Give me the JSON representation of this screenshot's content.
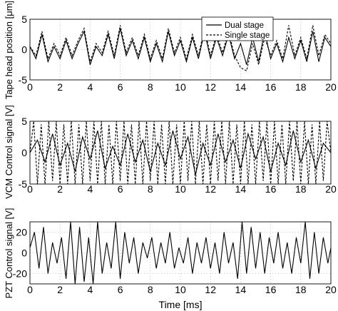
{
  "chart_data": [
    {
      "type": "line",
      "ylabel": "Tape head position [μm]",
      "xlabel": "",
      "xlim": [
        0,
        20
      ],
      "ylim": [
        -5,
        5
      ],
      "xticks": [
        "0",
        "2",
        "4",
        "6",
        "8",
        "10",
        "12",
        "14",
        "16",
        "18",
        "20"
      ],
      "yticks": [
        "-5",
        "0",
        "5"
      ],
      "grid": true,
      "legend_position": "top-right",
      "series": [
        {
          "name": "Dual stage",
          "style": "solid",
          "color": "#000000",
          "x": [
            0,
            0.4,
            0.8,
            1.2,
            1.6,
            2.0,
            2.4,
            2.8,
            3.2,
            3.6,
            4.0,
            4.4,
            4.8,
            5.2,
            5.6,
            6.0,
            6.4,
            6.8,
            7.2,
            7.6,
            8.0,
            8.4,
            8.8,
            9.2,
            9.6,
            10.0,
            10.4,
            10.8,
            11.2,
            11.6,
            12.0,
            12.4,
            12.8,
            13.2,
            13.6,
            14.0,
            14.4,
            14.8,
            15.2,
            15.6,
            16.0,
            16.4,
            16.8,
            17.2,
            17.6,
            18.0,
            18.4,
            18.8,
            19.2,
            19.6,
            20.0
          ],
          "y": [
            0.5,
            -1.5,
            2.5,
            -2.0,
            0.5,
            -1.5,
            1.5,
            -1.5,
            1.0,
            3.0,
            -2.5,
            0.5,
            -1.0,
            2.5,
            -1.5,
            3.5,
            -1.0,
            1.5,
            -1.5,
            2.0,
            -2.0,
            1.0,
            -2.0,
            3.0,
            -1.0,
            1.5,
            -2.0,
            2.0,
            -1.5,
            3.0,
            -1.5,
            2.0,
            -1.0,
            2.5,
            -1.5,
            1.0,
            -2.5,
            2.0,
            -2.0,
            3.0,
            -1.5,
            1.0,
            -2.0,
            2.0,
            -1.5,
            1.5,
            -2.0,
            3.0,
            -2.0,
            2.0,
            0.5
          ]
        },
        {
          "name": "Single stage",
          "style": "dashed",
          "color": "#000000",
          "x": [
            0,
            0.4,
            0.8,
            1.2,
            1.6,
            2.0,
            2.4,
            2.8,
            3.2,
            3.6,
            4.0,
            4.4,
            4.8,
            5.2,
            5.6,
            6.0,
            6.4,
            6.8,
            7.2,
            7.6,
            8.0,
            8.4,
            8.8,
            9.2,
            9.6,
            10.0,
            10.4,
            10.8,
            11.2,
            11.6,
            12.0,
            12.4,
            12.8,
            13.2,
            13.6,
            14.0,
            14.4,
            14.8,
            15.2,
            15.6,
            16.0,
            16.4,
            16.8,
            17.2,
            17.6,
            18.0,
            18.4,
            18.8,
            19.2,
            19.6,
            20.0
          ],
          "y": [
            0.5,
            -1.0,
            3.0,
            -1.5,
            1.0,
            -1.0,
            2.0,
            -1.0,
            1.5,
            3.5,
            -2.0,
            1.0,
            -0.5,
            3.0,
            -1.0,
            4.0,
            -0.5,
            2.0,
            -1.0,
            2.5,
            -1.5,
            1.5,
            -1.5,
            3.5,
            -0.5,
            2.0,
            -1.5,
            2.5,
            -1.0,
            3.5,
            -1.0,
            2.5,
            -0.5,
            3.0,
            -1.0,
            -3.0,
            -3.5,
            1.0,
            -2.5,
            2.0,
            -1.0,
            1.5,
            -1.5,
            4.0,
            -1.0,
            2.0,
            -1.5,
            4.0,
            -1.0,
            2.5,
            1.0
          ]
        }
      ]
    },
    {
      "type": "line",
      "ylabel": "VCM Control signal [V]",
      "xlabel": "",
      "xlim": [
        0,
        20
      ],
      "ylim": [
        -5,
        5
      ],
      "xticks": [
        "0",
        "2",
        "4",
        "6",
        "8",
        "10",
        "12",
        "14",
        "16",
        "18",
        "20"
      ],
      "yticks": [
        "-5",
        "0",
        "5"
      ],
      "grid": true,
      "series": [
        {
          "name": "Dual stage",
          "style": "solid",
          "color": "#000000",
          "x": [
            0,
            0.5,
            1.0,
            1.5,
            2.0,
            2.5,
            3.0,
            3.5,
            4.0,
            4.5,
            5.0,
            5.5,
            6.0,
            6.5,
            7.0,
            7.5,
            8.0,
            8.5,
            9.0,
            9.5,
            10.0,
            10.5,
            11.0,
            11.5,
            12.0,
            12.5,
            13.0,
            13.5,
            14.0,
            14.5,
            15.0,
            15.5,
            16.0,
            16.5,
            17.0,
            17.5,
            18.0,
            18.5,
            19.0,
            19.5,
            20.0
          ],
          "y": [
            0,
            2.0,
            -1.5,
            3.0,
            -2.0,
            1.5,
            -3.0,
            2.5,
            -1.0,
            3.5,
            -2.5,
            1.0,
            -2.0,
            3.0,
            -1.5,
            2.0,
            -3.0,
            1.5,
            -2.0,
            3.5,
            -1.0,
            2.5,
            -3.5,
            1.5,
            -2.0,
            3.0,
            -1.5,
            2.0,
            -2.5,
            3.0,
            -1.0,
            2.5,
            -3.0,
            1.5,
            -2.0,
            3.5,
            -1.5,
            2.0,
            -2.5,
            1.5,
            0
          ]
        },
        {
          "name": "Single stage",
          "style": "dashed",
          "color": "#000000",
          "x": [
            0,
            0.25,
            0.5,
            0.75,
            1.0,
            1.25,
            1.5,
            1.75,
            2.0,
            2.25,
            2.5,
            2.75,
            3.0,
            3.25,
            3.5,
            3.75,
            4.0,
            4.25,
            4.5,
            4.75,
            5.0,
            5.25,
            5.5,
            5.75,
            6.0,
            6.25,
            6.5,
            6.75,
            7.0,
            7.25,
            7.5,
            7.75,
            8.0,
            8.25,
            8.5,
            8.75,
            9.0,
            9.25,
            9.5,
            9.75,
            10.0,
            10.25,
            10.5,
            10.75,
            11.0,
            11.25,
            11.5,
            11.75,
            12.0,
            12.25,
            12.5,
            12.75,
            13.0,
            13.25,
            13.5,
            13.75,
            14.0,
            14.25,
            14.5,
            14.75,
            15.0,
            15.25,
            15.5,
            15.75,
            16.0,
            16.25,
            16.5,
            16.75,
            17.0,
            17.25,
            17.5,
            17.75,
            18.0,
            18.25,
            18.5,
            18.75,
            19.0,
            19.25,
            19.5,
            19.75,
            20.0
          ],
          "y": [
            0,
            5,
            -5,
            4.5,
            -5,
            5,
            -4.5,
            5,
            -5,
            4.5,
            -5,
            5,
            -5,
            4.5,
            -5,
            5,
            -4.5,
            5,
            -5,
            5,
            -5,
            4.5,
            -5,
            5,
            -4.5,
            5,
            -5,
            4.5,
            -5,
            5,
            -5,
            5,
            -4.5,
            5,
            -5,
            4.5,
            -5,
            5,
            -5,
            4.5,
            -5,
            5,
            -4.5,
            5,
            -5,
            5,
            -5,
            4.5,
            -5,
            5,
            -4.5,
            5,
            -5,
            5,
            -5,
            4.5,
            -5,
            5,
            -5,
            4.5,
            -5,
            5,
            -4.5,
            5,
            -5,
            5,
            -5,
            4.5,
            -5,
            5,
            -4.5,
            5,
            -5,
            5,
            -5,
            4.5,
            -5,
            5,
            -4.5,
            5,
            0
          ]
        }
      ]
    },
    {
      "type": "line",
      "ylabel": "PZT Control signal [V]",
      "xlabel": "Time [ms]",
      "xlim": [
        0,
        20
      ],
      "ylim": [
        -30,
        30
      ],
      "xticks": [
        "0",
        "2",
        "4",
        "6",
        "8",
        "10",
        "12",
        "14",
        "16",
        "18",
        "20"
      ],
      "yticks": [
        "-20",
        "0",
        "20"
      ],
      "grid": true,
      "series": [
        {
          "name": "Dual stage",
          "style": "solid",
          "color": "#000000",
          "x": [
            0,
            0.3,
            0.6,
            0.9,
            1.2,
            1.5,
            1.8,
            2.1,
            2.4,
            2.7,
            3.0,
            3.3,
            3.6,
            3.9,
            4.2,
            4.5,
            4.8,
            5.1,
            5.4,
            5.7,
            6.0,
            6.3,
            6.6,
            6.9,
            7.2,
            7.5,
            7.8,
            8.1,
            8.4,
            8.7,
            9.0,
            9.3,
            9.6,
            9.9,
            10.2,
            10.5,
            10.8,
            11.1,
            11.4,
            11.7,
            12.0,
            12.3,
            12.6,
            12.9,
            13.2,
            13.5,
            13.8,
            14.1,
            14.4,
            14.7,
            15.0,
            15.3,
            15.6,
            15.9,
            16.2,
            16.5,
            16.8,
            17.1,
            17.4,
            17.7,
            18.0,
            18.3,
            18.6,
            18.9,
            19.2,
            19.5,
            19.8,
            20.0
          ],
          "y": [
            5,
            20,
            -15,
            25,
            -20,
            10,
            -10,
            15,
            -25,
            30,
            -30,
            25,
            -28,
            15,
            -30,
            30,
            -20,
            10,
            -15,
            30,
            -25,
            20,
            -10,
            15,
            -20,
            10,
            -5,
            15,
            -15,
            10,
            -10,
            20,
            -15,
            5,
            -10,
            15,
            -20,
            10,
            -10,
            15,
            -15,
            10,
            -20,
            20,
            -10,
            10,
            -25,
            30,
            -20,
            25,
            -15,
            20,
            -20,
            15,
            -10,
            20,
            -15,
            10,
            -20,
            15,
            -10,
            30,
            -25,
            20,
            -20,
            15,
            -10,
            5
          ]
        }
      ]
    }
  ]
}
